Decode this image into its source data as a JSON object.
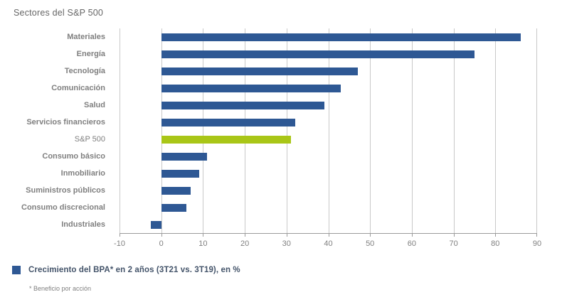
{
  "chart_data": {
    "type": "bar",
    "orientation": "horizontal",
    "title": "Sectores del S&P 500",
    "categories": [
      "Materiales",
      "Energía",
      "Tecnología",
      "Comunicación",
      "Salud",
      "Servicios financieros",
      "S&P 500",
      "Consumo básico",
      "Inmobiliario",
      "Suministros públicos",
      "Consumo discrecional",
      "Industriales"
    ],
    "values": [
      86,
      75,
      47,
      43,
      39,
      32,
      31,
      11,
      9,
      7,
      6,
      -2.5
    ],
    "highlight_category": "S&P 500",
    "xlabel": "",
    "ylabel": "",
    "xlim": [
      -10,
      90
    ],
    "xticks": [
      -10,
      0,
      10,
      20,
      30,
      40,
      50,
      60,
      70,
      80,
      90
    ],
    "grid": "vertical",
    "legend": {
      "position": "bottom-left",
      "label": "Crecimiento del BPA* en 2 años (3T21 vs. 3T19), en %"
    },
    "footnote": "* Beneficio por acción",
    "colors": {
      "bar": "#2e5894",
      "highlight": "#a9c617",
      "grid": "#c9c9c9",
      "axis": "#9b9b9b",
      "category_text": "#7f7f7f",
      "tick_text": "#808080",
      "title_text": "#666666",
      "legend_text": "#44546a"
    }
  }
}
